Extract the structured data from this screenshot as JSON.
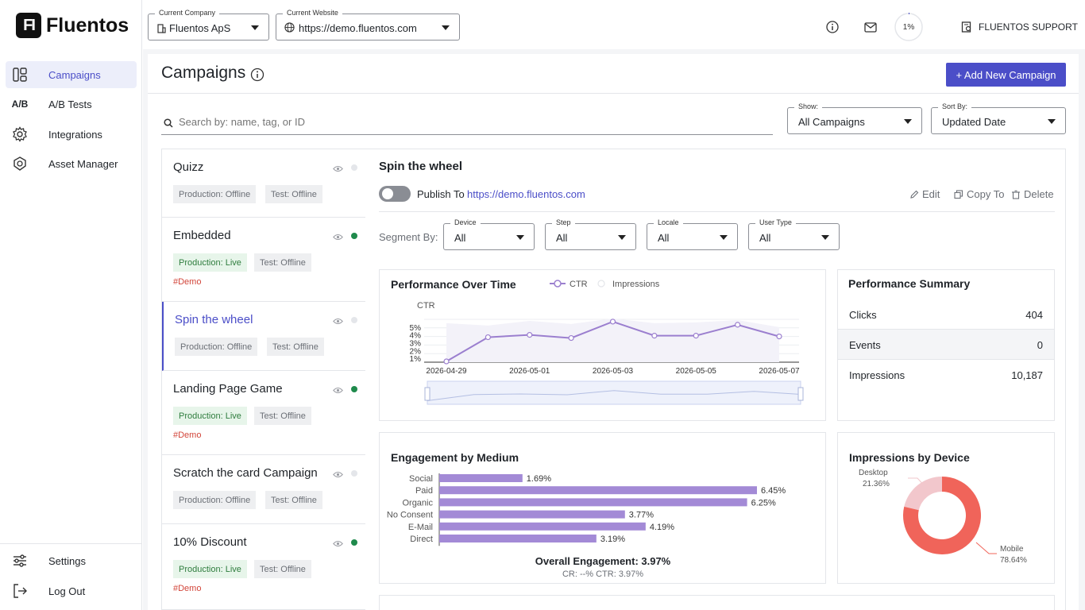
{
  "brand": {
    "name": "Fluentos",
    "mark": "FI"
  },
  "nav": [
    {
      "id": "campaigns",
      "label": "Campaigns",
      "active": true,
      "icon": "campaigns-icon"
    },
    {
      "id": "ab",
      "label": "A/B Tests",
      "icon": "ab-icon",
      "glyph": "A/B"
    },
    {
      "id": "integrations",
      "label": "Integrations",
      "icon": "gear-icon"
    },
    {
      "id": "assets",
      "label": "Asset Manager",
      "icon": "asset-icon"
    }
  ],
  "nav_bottom": [
    {
      "id": "settings",
      "label": "Settings",
      "icon": "sliders-icon"
    },
    {
      "id": "logout",
      "label": "Log Out",
      "icon": "logout-icon"
    }
  ],
  "topbar": {
    "company": {
      "label": "Current Company",
      "value": "Fluentos ApS"
    },
    "website": {
      "label": "Current Website",
      "value": "https://demo.fluentos.com"
    },
    "progress": "1%",
    "support": "FLUENTOS SUPPORT"
  },
  "page": {
    "title": "Campaigns",
    "add_button": "+ Add New Campaign",
    "search_placeholder": "Search by: name, tag, or ID",
    "show": {
      "label": "Show:",
      "value": "All Campaigns"
    },
    "sort": {
      "label": "Sort By:",
      "value": "Updated Date"
    }
  },
  "campaigns": [
    {
      "name": "Quizz",
      "prod": "Production: Offline",
      "test": "Test: Offline",
      "live": false,
      "tag": ""
    },
    {
      "name": "Embedded",
      "prod": "Production: Live",
      "test": "Test: Offline",
      "live": true,
      "tag": "#Demo"
    },
    {
      "name": "Spin the wheel",
      "prod": "Production: Offline",
      "test": "Test: Offline",
      "live": false,
      "tag": "",
      "selected": true
    },
    {
      "name": "Landing Page Game",
      "prod": "Production: Live",
      "test": "Test: Offline",
      "live": true,
      "tag": "#Demo"
    },
    {
      "name": "Scratch the card Campaign",
      "prod": "Production: Offline",
      "test": "Test: Offline",
      "live": false,
      "tag": ""
    },
    {
      "name": "10% Discount",
      "prod": "Production: Live",
      "test": "Test: Offline",
      "live": true,
      "tag": "#Demo"
    }
  ],
  "detail": {
    "title": "Spin the wheel",
    "publish_label": "Publish To",
    "publish_url": "https://demo.fluentos.com",
    "edit": "Edit",
    "copy": "Copy To",
    "delete": "Delete",
    "segment_label": "Segment By:",
    "segments": [
      {
        "label": "Device",
        "value": "All"
      },
      {
        "label": "Step",
        "value": "All"
      },
      {
        "label": "Locale",
        "value": "All"
      },
      {
        "label": "User Type",
        "value": "All"
      }
    ]
  },
  "summary": {
    "title": "Performance Summary",
    "rows": [
      {
        "k": "Clicks",
        "v": "404"
      },
      {
        "k": "Events",
        "v": "0"
      },
      {
        "k": "Impressions",
        "v": "10,187"
      }
    ]
  },
  "chart_data": [
    {
      "type": "line",
      "title": "Performance Over Time",
      "legend": [
        "CTR",
        "Impressions"
      ],
      "ylabel": "CTR",
      "x": [
        "2026-04-29",
        "2026-04-30",
        "2026-05-01",
        "2026-05-02",
        "2026-05-03",
        "2026-05-04",
        "2026-05-05",
        "2026-05-06",
        "2026-05-07"
      ],
      "xticks": [
        "2026-04-29",
        "2026-05-01",
        "2026-05-03",
        "2026-05-05",
        "2026-05-07"
      ],
      "yticks": [
        "1%",
        "2%",
        "3%",
        "4%",
        "5%"
      ],
      "ylim": [
        0.5,
        6
      ],
      "series": [
        {
          "name": "CTR",
          "color": "#9b7fcf",
          "values": [
            0.6,
            3.7,
            4.0,
            3.6,
            5.7,
            3.9,
            3.9,
            5.3,
            3.8
          ]
        },
        {
          "name": "Impressions",
          "color": "#e8e6f3",
          "values": [
            5.5,
            5.2,
            5.8,
            5.4,
            6.1,
            5.5,
            5.6,
            5.9,
            5.0
          ]
        }
      ]
    },
    {
      "type": "bar",
      "title": "Engagement by Medium",
      "categories": [
        "Social",
        "Paid",
        "Organic",
        "No Consent",
        "E-Mail",
        "Direct"
      ],
      "values": [
        1.69,
        6.45,
        6.25,
        3.77,
        4.19,
        3.19
      ],
      "labels": [
        "1.69%",
        "6.45%",
        "6.25%",
        "3.77%",
        "4.19%",
        "3.19%"
      ],
      "color": "#a38ad6",
      "footer": "Overall Engagement: 3.97%",
      "sub": "CR: --%    CTR: 3.97%"
    },
    {
      "type": "pie",
      "title": "Impressions by Device",
      "slices": [
        {
          "name": "Desktop",
          "value": 21.36,
          "label": "21.36%",
          "color": "#f2c7cc"
        },
        {
          "name": "Mobile",
          "value": 78.64,
          "label": "78.64%",
          "color": "#f0645a"
        }
      ]
    }
  ]
}
